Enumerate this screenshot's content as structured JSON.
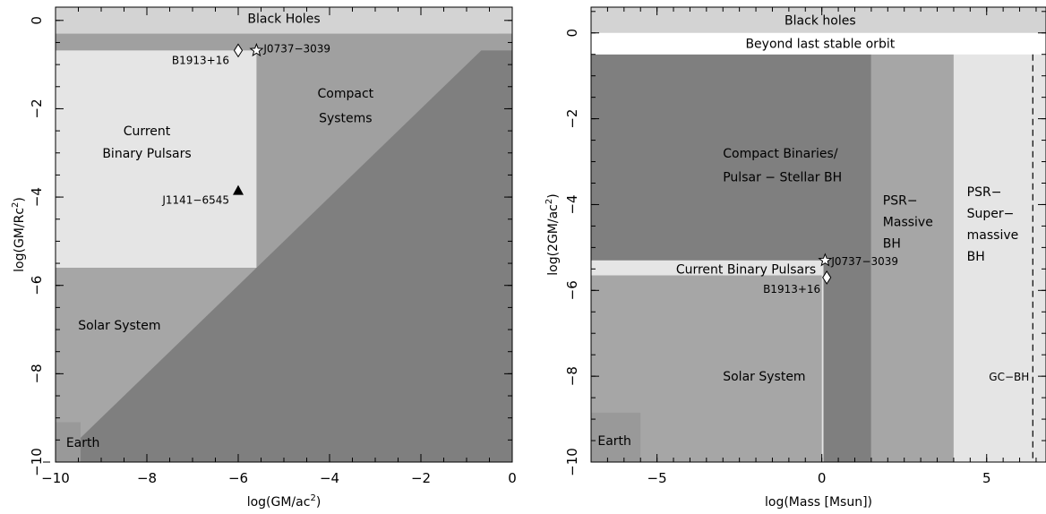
{
  "chart_data": [
    {
      "type": "region-map",
      "xlabel": "log(GM/ac",
      "xlabel_sup": "2",
      "xlabel_end": ")",
      "ylabel": "log(GM/Rc",
      "ylabel_sup": "2",
      "ylabel_end": ")",
      "xlim": [
        -10,
        0
      ],
      "ylim": [
        -10,
        0.3
      ],
      "x_ticks": [
        -10,
        -8,
        -6,
        -4,
        -2,
        0
      ],
      "x_tick_labels": [
        "−10",
        "−8",
        "−6",
        "−4",
        "−2",
        "0"
      ],
      "y_ticks": [
        0,
        -2,
        -4,
        -6,
        -8,
        -10
      ],
      "y_tick_labels": [
        "0",
        "−2",
        "−4",
        "−6",
        "−8",
        "−10"
      ],
      "colors": {
        "solar": "#a6a6a6",
        "compact_diag": "#7f7f7f",
        "compact_upper": "#a0a0a0",
        "binary_pulsars": "#e5e5e5",
        "black_holes": "#d3d3d3",
        "band": "#a0a0a0",
        "earth": "#999999"
      },
      "regions": [
        {
          "name": "Black Holes",
          "label": "Black Holes"
        },
        {
          "name": "Compact Systems",
          "label_lines": [
            "Compact",
            "Systems"
          ]
        },
        {
          "name": "Current Binary Pulsars",
          "label_lines": [
            "Current",
            "Binary Pulsars"
          ]
        },
        {
          "name": "Solar System",
          "label": "Solar System"
        },
        {
          "name": "Earth",
          "label": "Earth"
        }
      ],
      "points": [
        {
          "name": "B1913+16",
          "x": -6.0,
          "y": -0.68,
          "marker": "diamond"
        },
        {
          "name": "J0737-3039",
          "x": -5.6,
          "y": -0.68,
          "marker": "star"
        },
        {
          "name": "J1141-6545",
          "x": -6.0,
          "y": -3.85,
          "marker": "triangle-filled"
        }
      ],
      "point_labels": {
        "B1913+16": "B1913+16",
        "J0737-3039": "J0737−3039",
        "J1141-6545": "J1141−6545"
      }
    },
    {
      "type": "region-map",
      "xlabel": "log(Mass [Msun])",
      "ylabel": "log(2GM/ac",
      "ylabel_sup": "2",
      "ylabel_end": ")",
      "xlim": [
        -7,
        6.8
      ],
      "ylim": [
        -10,
        0.6
      ],
      "x_ticks": [
        -5,
        0,
        5
      ],
      "x_tick_labels": [
        "−5",
        "0",
        "5"
      ],
      "y_ticks": [
        0,
        -2,
        -4,
        -6,
        -8,
        -10
      ],
      "y_tick_labels": [
        "0",
        "−2",
        "−4",
        "−6",
        "−8",
        "−10"
      ],
      "colors": {
        "black_holes": "#d3d3d3",
        "beyond_orbit": "#ffffff",
        "compact": "#7f7f7f",
        "psr_massive": "#a6a6a6",
        "psr_super": "#e5e5e5",
        "solar": "#a6a6a6",
        "binary_pulsars": "#e5e5e5",
        "earth": "#999999"
      },
      "regions": [
        {
          "name": "Black holes",
          "label": "Black holes"
        },
        {
          "name": "Beyond last stable orbit",
          "label": "Beyond last stable orbit"
        },
        {
          "name": "Compact Binaries",
          "label_lines": [
            "Compact Binaries/",
            "Pulsar − Stellar BH"
          ]
        },
        {
          "name": "PSR-Massive BH",
          "label_lines": [
            "PSR−",
            "Massive",
            "BH"
          ]
        },
        {
          "name": "PSR-Supermassive BH",
          "label_lines": [
            "PSR−",
            "Super−",
            "massive",
            "BH"
          ]
        },
        {
          "name": "Current Binary Pulsars",
          "label": "Current Binary Pulsars"
        },
        {
          "name": "Solar System",
          "label": "Solar System"
        },
        {
          "name": "Earth",
          "label": "Earth"
        }
      ],
      "points": [
        {
          "name": "J0737-3039",
          "x": 0.1,
          "y": -5.3,
          "marker": "star"
        },
        {
          "name": "B1913+16",
          "x": 0.15,
          "y": -5.7,
          "marker": "diamond"
        }
      ],
      "point_labels": {
        "J0737-3039": "J0737−3039",
        "B1913+16": "B1913+16"
      },
      "reference_lines": [
        {
          "name": "GC-BH",
          "x": 6.4,
          "style": "dashed",
          "label": "GC−BH"
        }
      ]
    }
  ]
}
